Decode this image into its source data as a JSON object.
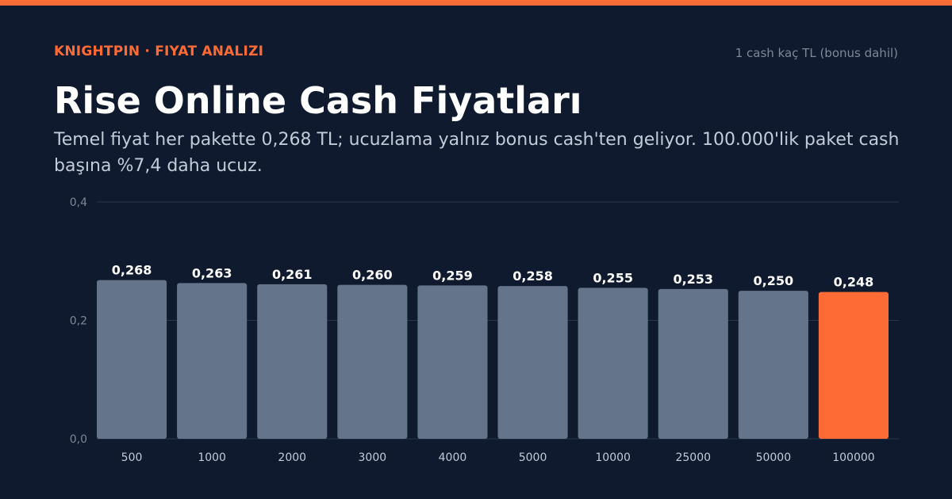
{
  "header": {
    "brand": "KNIGHTPIN · FIYAT ANALIZI",
    "unit_note": "1 cash kaç TL (bonus dahil)",
    "title": "Rise Online Cash Fiyatları",
    "subtitle": "Temel fiyat her pakette 0,268 TL; ucuzlama yalnız bonus cash'ten geliyor. 100.000'lik paket cash başına %7,4 daha ucuz."
  },
  "colors": {
    "accent": "#ff6b35",
    "bar": "#64748b",
    "grid": "#2a3548",
    "background": "#0f1a2e"
  },
  "chart_data": {
    "type": "bar",
    "categories": [
      "500",
      "1000",
      "2000",
      "3000",
      "4000",
      "5000",
      "10000",
      "25000",
      "50000",
      "100000"
    ],
    "values": [
      0.268,
      0.263,
      0.261,
      0.26,
      0.259,
      0.258,
      0.255,
      0.253,
      0.25,
      0.248
    ],
    "value_labels": [
      "0,268",
      "0,263",
      "0,261",
      "0,260",
      "0,259",
      "0,258",
      "0,255",
      "0,253",
      "0,250",
      "0,248"
    ],
    "ylim": [
      0,
      0.4
    ],
    "yticks": [
      0,
      0.2,
      0.4
    ],
    "ytick_labels": [
      "0,0",
      "0,2",
      "0,4"
    ],
    "highlight_index": 9,
    "grid": true
  }
}
